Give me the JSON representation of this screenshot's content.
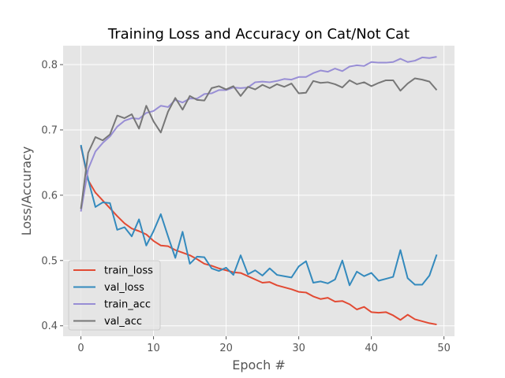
{
  "chart_data": {
    "type": "line",
    "title": "Training Loss and Accuracy on Cat/Not Cat",
    "xlabel": "Epoch #",
    "ylabel": "Loss/Accuracy",
    "xlim": [
      -2.45,
      51.45
    ],
    "ylim": [
      0.384,
      0.829
    ],
    "xticks": [
      0,
      10,
      20,
      30,
      40,
      50
    ],
    "xtick_labels": [
      "0",
      "10",
      "20",
      "30",
      "40",
      "50"
    ],
    "yticks": [
      0.4,
      0.5,
      0.6,
      0.7,
      0.8
    ],
    "ytick_labels": [
      "0.4",
      "0.5",
      "0.6",
      "0.7",
      "0.8"
    ],
    "grid": true,
    "legend_position": "bottom-left",
    "plot_background": "#e5e5e5",
    "x": [
      0,
      1,
      2,
      3,
      4,
      5,
      6,
      7,
      8,
      9,
      10,
      11,
      12,
      13,
      14,
      15,
      16,
      17,
      18,
      19,
      20,
      21,
      22,
      23,
      24,
      25,
      26,
      27,
      28,
      29,
      30,
      31,
      32,
      33,
      34,
      35,
      36,
      37,
      38,
      39,
      40,
      41,
      42,
      43,
      44,
      45,
      46,
      47,
      48,
      49
    ],
    "series": [
      {
        "name": "train_loss",
        "color": "#e24a33",
        "values": [
          0.675,
          0.623,
          0.604,
          0.592,
          0.58,
          0.568,
          0.557,
          0.549,
          0.545,
          0.54,
          0.53,
          0.523,
          0.522,
          0.516,
          0.512,
          0.508,
          0.502,
          0.495,
          0.492,
          0.488,
          0.485,
          0.482,
          0.481,
          0.476,
          0.471,
          0.466,
          0.467,
          0.462,
          0.459,
          0.456,
          0.452,
          0.451,
          0.445,
          0.441,
          0.443,
          0.437,
          0.438,
          0.433,
          0.425,
          0.429,
          0.421,
          0.42,
          0.421,
          0.416,
          0.409,
          0.417,
          0.41,
          0.407,
          0.404,
          0.402
        ]
      },
      {
        "name": "val_loss",
        "color": "#348abd",
        "values": [
          0.677,
          0.624,
          0.582,
          0.589,
          0.588,
          0.547,
          0.551,
          0.537,
          0.563,
          0.523,
          0.545,
          0.571,
          0.537,
          0.504,
          0.544,
          0.495,
          0.506,
          0.505,
          0.488,
          0.484,
          0.489,
          0.478,
          0.508,
          0.479,
          0.485,
          0.477,
          0.488,
          0.478,
          0.476,
          0.474,
          0.491,
          0.499,
          0.466,
          0.468,
          0.465,
          0.471,
          0.5,
          0.462,
          0.483,
          0.476,
          0.481,
          0.469,
          0.472,
          0.475,
          0.516,
          0.473,
          0.463,
          0.463,
          0.477,
          0.509
        ]
      },
      {
        "name": "train_acc",
        "color": "#988ed5",
        "values": [
          0.575,
          0.64,
          0.667,
          0.68,
          0.69,
          0.705,
          0.714,
          0.718,
          0.717,
          0.726,
          0.729,
          0.737,
          0.735,
          0.746,
          0.742,
          0.748,
          0.748,
          0.755,
          0.756,
          0.761,
          0.761,
          0.765,
          0.764,
          0.765,
          0.773,
          0.774,
          0.773,
          0.775,
          0.778,
          0.777,
          0.781,
          0.781,
          0.787,
          0.791,
          0.789,
          0.794,
          0.79,
          0.797,
          0.799,
          0.798,
          0.804,
          0.803,
          0.803,
          0.804,
          0.809,
          0.804,
          0.806,
          0.811,
          0.81,
          0.812
        ]
      },
      {
        "name": "val_acc",
        "color": "#777777",
        "values": [
          0.579,
          0.665,
          0.689,
          0.684,
          0.693,
          0.722,
          0.718,
          0.724,
          0.702,
          0.737,
          0.713,
          0.696,
          0.728,
          0.749,
          0.731,
          0.752,
          0.746,
          0.745,
          0.764,
          0.767,
          0.762,
          0.767,
          0.752,
          0.766,
          0.762,
          0.769,
          0.764,
          0.77,
          0.766,
          0.771,
          0.756,
          0.757,
          0.775,
          0.772,
          0.773,
          0.77,
          0.765,
          0.776,
          0.77,
          0.773,
          0.767,
          0.772,
          0.776,
          0.776,
          0.76,
          0.771,
          0.779,
          0.777,
          0.774,
          0.761
        ]
      }
    ]
  }
}
